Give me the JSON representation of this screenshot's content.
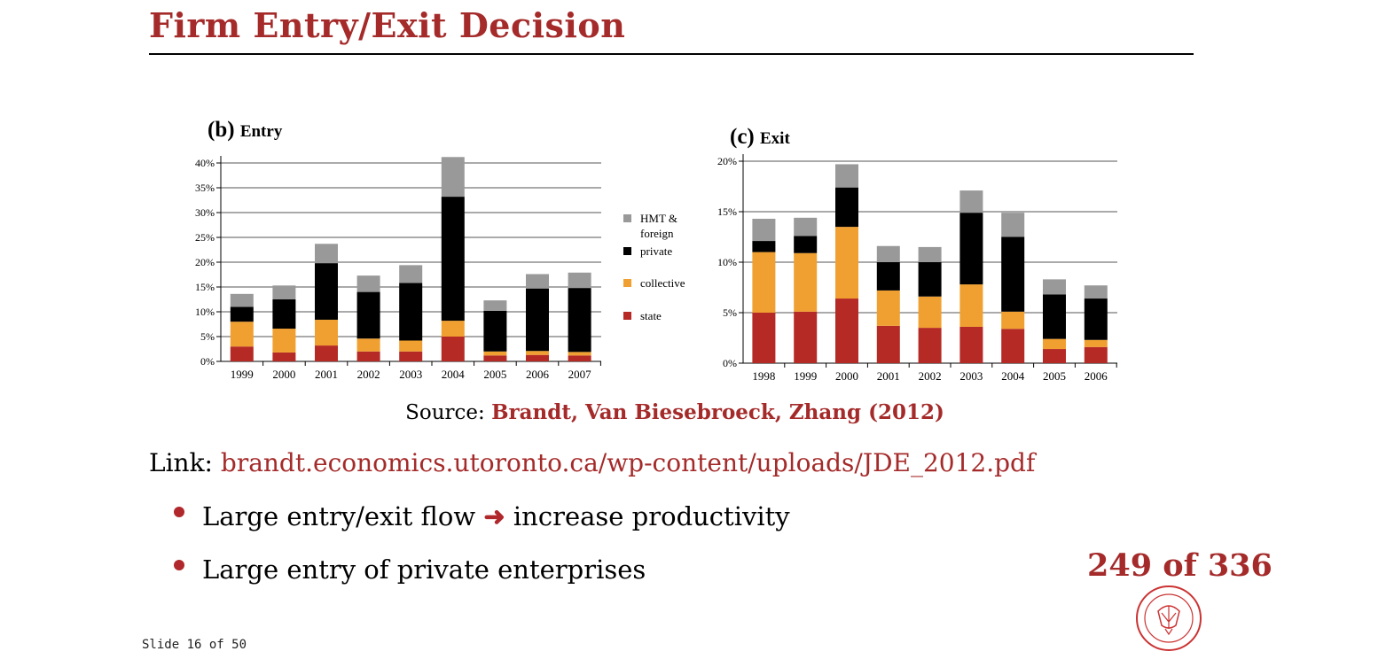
{
  "header": {
    "title": "Firm Entry/Exit Decision"
  },
  "colors": {
    "hmt_foreign": "#999999",
    "private": "#000000",
    "collective": "#f0a030",
    "state": "#b52a25",
    "accent": "#a52a2a"
  },
  "chart_data": [
    {
      "type": "bar",
      "stacked": true,
      "panel_label": "(b)",
      "title": "Entry",
      "categories": [
        "1999",
        "2000",
        "2001",
        "2002",
        "2003",
        "2004",
        "2005",
        "2006",
        "2007"
      ],
      "series": [
        {
          "name": "state",
          "values": [
            3,
            1.8,
            3.2,
            2,
            2,
            5,
            1.2,
            1.3,
            1.2
          ]
        },
        {
          "name": "collective",
          "values": [
            5,
            4.8,
            5.2,
            2.6,
            2.2,
            3.2,
            0.8,
            0.8,
            0.7
          ]
        },
        {
          "name": "private",
          "values": [
            3,
            5.9,
            11.4,
            9.4,
            11.6,
            25,
            8.2,
            12.6,
            12.9
          ]
        },
        {
          "name": "HMT & foreign",
          "values": [
            2.6,
            2.8,
            3.9,
            3.3,
            3.6,
            8,
            2.1,
            2.9,
            3.1
          ]
        }
      ],
      "ylim": [
        0,
        40
      ],
      "yticks": [
        "0%",
        "5%",
        "10%",
        "15%",
        "20%",
        "25%",
        "30%",
        "35%",
        "40%"
      ],
      "legend": [
        "HMT & foreign",
        "private",
        "collective",
        "state"
      ],
      "grid": true
    },
    {
      "type": "bar",
      "stacked": true,
      "panel_label": "(c)",
      "title": "Exit",
      "categories": [
        "1998",
        "1999",
        "2000",
        "2001",
        "2002",
        "2003",
        "2004",
        "2005",
        "2006"
      ],
      "series": [
        {
          "name": "state",
          "values": [
            5,
            5.1,
            6.4,
            3.7,
            3.5,
            3.6,
            3.4,
            1.4,
            1.6
          ]
        },
        {
          "name": "collective",
          "values": [
            6,
            5.8,
            7.1,
            3.5,
            3.1,
            4.2,
            1.7,
            1.0,
            0.7
          ]
        },
        {
          "name": "private",
          "values": [
            1.1,
            1.7,
            3.9,
            2.8,
            3.4,
            7.1,
            7.4,
            4.4,
            4.1
          ]
        },
        {
          "name": "HMT & foreign",
          "values": [
            2.2,
            1.8,
            2.3,
            1.6,
            1.5,
            2.2,
            2.4,
            1.5,
            1.3
          ]
        }
      ],
      "ylim": [
        0,
        20
      ],
      "yticks": [
        "0%",
        "5%",
        "10%",
        "15%",
        "20%"
      ],
      "grid": true
    }
  ],
  "legend": {
    "hmt_line1": "HMT &",
    "hmt_line2": "foreign",
    "private": "private",
    "collective": "collective",
    "state": "state"
  },
  "source": {
    "prefix": "Source:",
    "ref": "Brandt, Van Biesebroeck, Zhang (2012)"
  },
  "link": {
    "prefix": "Link:",
    "url": "brandt.economics.utoronto.ca/wp-content/uploads/JDE_2012.pdf"
  },
  "bullets": [
    {
      "before": "Large entry/exit flow",
      "arrow": "➜",
      "after": "increase productivity"
    },
    {
      "text": "Large entry of private enterprises"
    }
  ],
  "footer": {
    "page_count": "249 of 336",
    "slide_number": "Slide 16 of 50"
  }
}
